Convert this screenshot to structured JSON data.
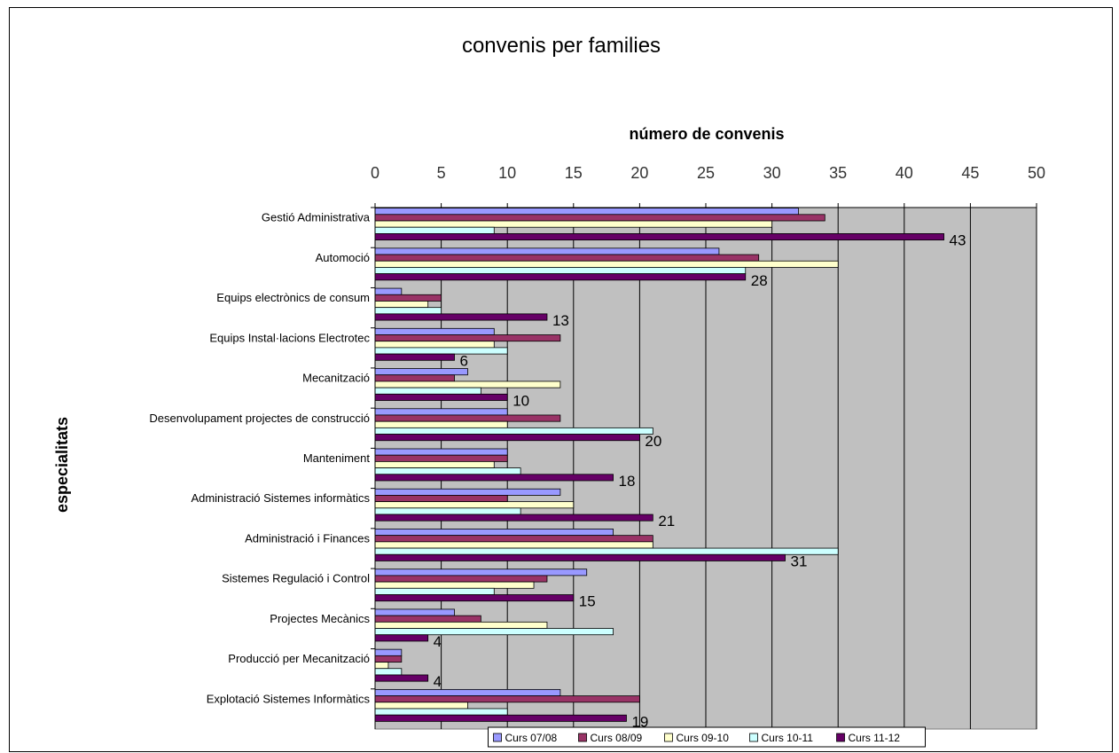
{
  "chart_data": {
    "type": "bar",
    "orientation": "horizontal",
    "title": "convenis per families",
    "xlabel": "número de convenis",
    "ylabel": "especialitats",
    "xlim": [
      0,
      50
    ],
    "xticks": [
      "0",
      "5",
      "10",
      "15",
      "20",
      "25",
      "30",
      "35",
      "40",
      "45",
      "50"
    ],
    "categories": [
      "Gestió Administrativa",
      "Automoció",
      "Equips electrònics de consum",
      "Equips Instal·lacions Electrotec",
      "Mecanització",
      "Desenvolupament projectes de construcció",
      "Manteniment",
      "Administració Sistemes informàtics",
      "Administració i Finances",
      "Sistemes Regulació i Control",
      "Projectes Mecànics",
      "Producció per Mecanització",
      "Explotació Sistemes Informàtics"
    ],
    "series": [
      {
        "name": "Curs 07/08",
        "color": "#9999ff",
        "values": [
          32,
          26,
          2,
          9,
          7,
          10,
          10,
          14,
          18,
          16,
          6,
          2,
          14
        ]
      },
      {
        "name": "Curs 08/09",
        "color": "#993366",
        "values": [
          34,
          29,
          5,
          14,
          6,
          14,
          10,
          10,
          21,
          13,
          8,
          2,
          20
        ]
      },
      {
        "name": "Curs 09-10",
        "color": "#ffffcc",
        "values": [
          30,
          35,
          4,
          9,
          14,
          10,
          9,
          15,
          21,
          12,
          13,
          1,
          7
        ]
      },
      {
        "name": "Curs 10-11",
        "color": "#ccffff",
        "values": [
          9,
          28,
          5,
          10,
          8,
          21,
          11,
          11,
          35,
          9,
          18,
          2,
          10
        ]
      },
      {
        "name": "Curs 11-12",
        "color": "#660066",
        "values": [
          43,
          28,
          13,
          6,
          10,
          20,
          18,
          21,
          31,
          15,
          4,
          4,
          19
        ]
      }
    ],
    "data_labels_series": "Curs 11-12",
    "plot_background": "#c0c0c0",
    "grid": true,
    "legend_position": "bottom"
  }
}
